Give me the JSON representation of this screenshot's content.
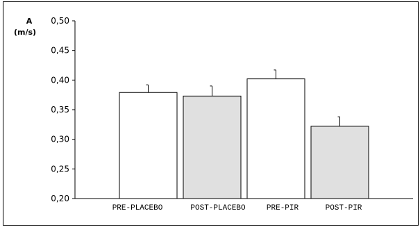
{
  "chart_data": {
    "type": "bar",
    "title": "",
    "ylabel_line1": "A",
    "ylabel_line2": "(m/s)",
    "xlabel": "",
    "ylim": [
      0.2,
      0.5
    ],
    "yticks": [
      "0,20",
      "0,25",
      "0,30",
      "0,35",
      "0,40",
      "0,45",
      "0,50"
    ],
    "ytick_values": [
      0.2,
      0.25,
      0.3,
      0.35,
      0.4,
      0.45,
      0.5
    ],
    "categories": [
      "PRE-PLACEBO",
      "POST-PLACEBO",
      "PRE-PIR",
      "POST-PIR"
    ],
    "values": [
      0.379,
      0.373,
      0.402,
      0.322
    ],
    "error_upper": [
      0.392,
      0.39,
      0.417,
      0.338
    ],
    "bar_colors": [
      "#ffffff",
      "#e0e0e0",
      "#ffffff",
      "#e0e0e0"
    ],
    "grid": false,
    "legend": "none"
  }
}
